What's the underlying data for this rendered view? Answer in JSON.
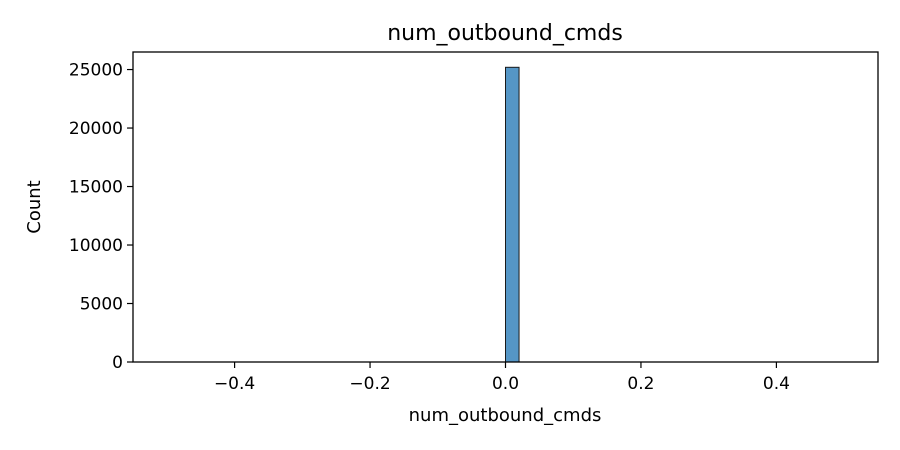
{
  "chart_data": {
    "type": "bar",
    "title": "num_outbound_cmds",
    "xlabel": "num_outbound_cmds",
    "ylabel": "Count",
    "xlim": [
      -0.55,
      0.55
    ],
    "ylim": [
      0,
      26500
    ],
    "xticks": [
      -0.4,
      -0.2,
      0.0,
      0.2,
      0.4
    ],
    "xtick_labels": [
      "−0.4",
      "−0.2",
      "0.0",
      "0.2",
      "0.4"
    ],
    "yticks": [
      0,
      5000,
      10000,
      15000,
      20000,
      25000
    ],
    "ytick_labels": [
      "0",
      "5000",
      "10000",
      "15000",
      "20000",
      "25000"
    ],
    "bins": [
      {
        "x0": 0.0,
        "x1": 0.02,
        "count": 25192
      }
    ],
    "grid": false,
    "colors": {
      "bar_fill": "#5596c6",
      "bar_edge": "#1a1a1a",
      "axis": "#000000"
    }
  }
}
